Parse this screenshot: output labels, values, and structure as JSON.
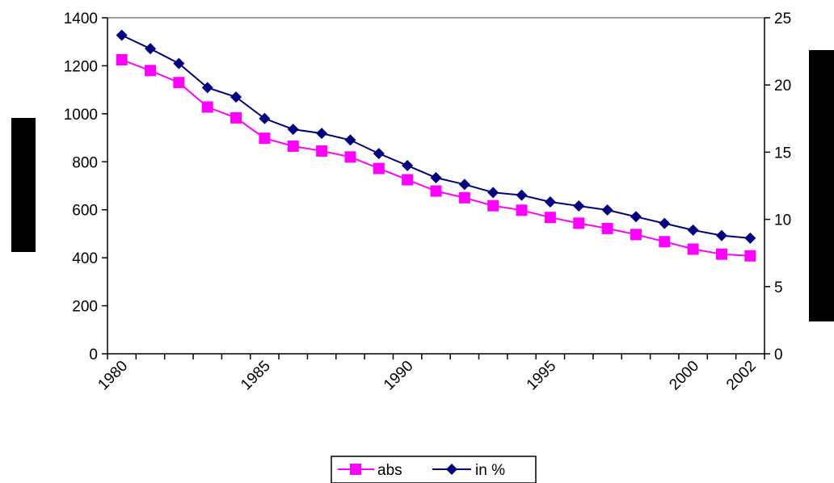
{
  "chart_data": {
    "type": "line",
    "x": [
      1980,
      1981,
      1982,
      1983,
      1984,
      1985,
      1986,
      1987,
      1988,
      1989,
      1990,
      1991,
      1992,
      1993,
      1994,
      1995,
      1996,
      1997,
      1998,
      1999,
      2000,
      2001,
      2002
    ],
    "series": [
      {
        "name": "abs",
        "axis": "left",
        "color": "#ff00ff",
        "marker": "square",
        "values": [
          1225,
          1180,
          1130,
          1028,
          983,
          898,
          865,
          845,
          820,
          772,
          725,
          678,
          650,
          617,
          598,
          568,
          544,
          522,
          497,
          467,
          436,
          415,
          408
        ]
      },
      {
        "name": "in %",
        "axis": "right",
        "color": "#000080",
        "marker": "diamond",
        "values": [
          23.7,
          22.7,
          21.6,
          19.8,
          19.1,
          17.5,
          16.7,
          16.4,
          15.9,
          14.9,
          14.0,
          13.1,
          12.6,
          12.0,
          11.8,
          11.3,
          11.0,
          10.7,
          10.2,
          9.7,
          9.2,
          8.8,
          8.6
        ]
      }
    ],
    "x_tick_labels": [
      {
        "x": 1980,
        "label": "1980"
      },
      {
        "x": 1985,
        "label": "1985"
      },
      {
        "x": 1990,
        "label": "1990"
      },
      {
        "x": 1995,
        "label": "1995"
      },
      {
        "x": 2000,
        "label": "2000"
      },
      {
        "x": 2002,
        "label": "2002"
      }
    ],
    "y_left": {
      "min": 0,
      "max": 1400,
      "step": 200,
      "tick_labels": [
        "0",
        "200",
        "400",
        "600",
        "800",
        "1000",
        "1200",
        "1400"
      ]
    },
    "y_right": {
      "min": 0,
      "max": 25,
      "step": 5,
      "tick_labels": [
        "0",
        "5",
        "10",
        "15",
        "20",
        "25"
      ]
    },
    "legend": {
      "position": "bottom",
      "entries": [
        "abs",
        "in %"
      ]
    },
    "grid": false,
    "title": "",
    "xlabel": "",
    "ylabel": ""
  }
}
